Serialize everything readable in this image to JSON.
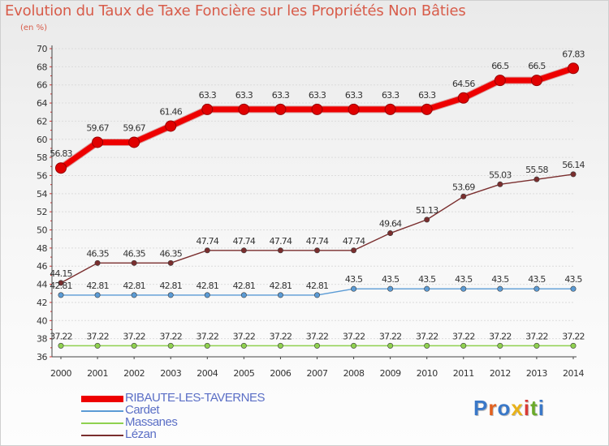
{
  "title": "Evolution du Taux de Taxe Foncière sur les Propriétés Non Bâties",
  "subtitle": "(en %)",
  "logo": {
    "text": "Proxiti",
    "colors": [
      "#3a78c8",
      "#e2611f",
      "#3a78c8",
      "#e8b21a",
      "#d93a36",
      "#6aaa2a",
      "#3a78c8"
    ]
  },
  "chart_data": {
    "type": "line",
    "title": "Evolution du Taux de Taxe Foncière sur les Propriétés Non Bâties",
    "ylabel": "(en %)",
    "xlabel": "",
    "x": [
      "2000",
      "2001",
      "2002",
      "2003",
      "2004",
      "2005",
      "2006",
      "2007",
      "2008",
      "2009",
      "2010",
      "2011",
      "2012",
      "2013",
      "2014"
    ],
    "ylim": [
      36,
      70
    ],
    "yticks": [
      36,
      38,
      40,
      42,
      44,
      46,
      48,
      50,
      52,
      54,
      56,
      58,
      60,
      62,
      64,
      66,
      68,
      70
    ],
    "grid": "horizontal",
    "legend_position": "bottom-left",
    "series": [
      {
        "name": "RIBAUTE-LES-TAVERNES",
        "color": "#ee0000",
        "values": [
          56.83,
          59.67,
          59.67,
          61.46,
          63.3,
          63.3,
          63.3,
          63.3,
          63.3,
          63.3,
          63.3,
          64.56,
          66.5,
          66.5,
          67.83
        ],
        "labels": [
          "56.83",
          "59.67",
          "59.67",
          "61.46",
          "63.3",
          "63.3",
          "63.3",
          "63.3",
          "63.3",
          "63.3",
          "63.3",
          "64.56",
          "66.5",
          "66.5",
          "67.83"
        ]
      },
      {
        "name": "Cardet",
        "color": "#5b9bd5",
        "values": [
          42.81,
          42.81,
          42.81,
          42.81,
          42.81,
          42.81,
          42.81,
          42.81,
          43.5,
          43.5,
          43.5,
          43.5,
          43.5,
          43.5,
          43.5
        ],
        "labels": [
          "42.81",
          "42.81",
          "42.81",
          "42.81",
          "42.81",
          "42.81",
          "42.81",
          "42.81",
          "43.5",
          "43.5",
          "43.5",
          "43.5",
          "43.5",
          "43.5",
          "43.5"
        ]
      },
      {
        "name": "Massanes",
        "color": "#8fd14f",
        "values": [
          37.22,
          37.22,
          37.22,
          37.22,
          37.22,
          37.22,
          37.22,
          37.22,
          37.22,
          37.22,
          37.22,
          37.22,
          37.22,
          37.22,
          37.22
        ],
        "labels": [
          "37.22",
          "37.22",
          "37.22",
          "37.22",
          "37.22",
          "37.22",
          "37.22",
          "37.22",
          "37.22",
          "37.22",
          "37.22",
          "37.22",
          "37.22",
          "37.22",
          "37.22"
        ]
      },
      {
        "name": "Lézan",
        "color": "#7a2e2e",
        "values": [
          44.15,
          46.35,
          46.35,
          46.35,
          47.74,
          47.74,
          47.74,
          47.74,
          47.74,
          49.64,
          51.13,
          53.69,
          55.03,
          55.58,
          56.14
        ],
        "labels": [
          "44.15",
          "46.35",
          "46.35",
          "46.35",
          "47.74",
          "47.74",
          "47.74",
          "47.74",
          "47.74",
          "49.64",
          "51.13",
          "53.69",
          "55.03",
          "55.58",
          "56.14"
        ]
      }
    ]
  }
}
